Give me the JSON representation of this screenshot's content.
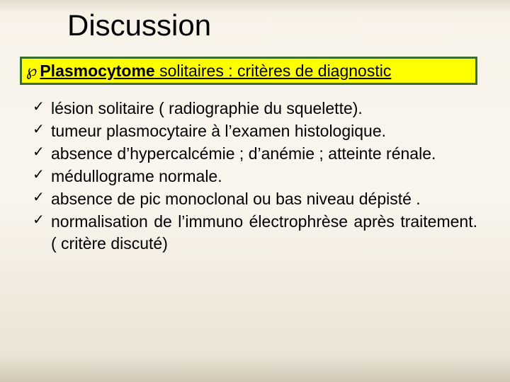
{
  "colors": {
    "bg_top": "#f7f2e8",
    "bg_bottom": "#e8e0d0",
    "callout_bg": "#ffff00",
    "callout_border": "#3a6e2d",
    "text": "#000000"
  },
  "typography": {
    "title_fontsize": 42,
    "callout_fontsize": 23,
    "body_fontsize": 23
  },
  "title": "Discussion",
  "callout": {
    "bold_part": "Plasmocytome",
    "rest_part": " solitaires : critères de diagnostic"
  },
  "bullets": [
    " lésion solitaire ( radiographie du squelette).",
    "tumeur plasmocytaire à l’examen histologique.",
    " absence d’hypercalcémie ; d’anémie ; atteinte rénale.",
    " médullograme normale.",
    " absence de pic monoclonal  ou bas niveau dépisté .",
    " normalisation de l’immuno électrophrèse  après traitement. ( critère discuté)"
  ],
  "check_glyph": "✓",
  "curl_glyph": "℘"
}
